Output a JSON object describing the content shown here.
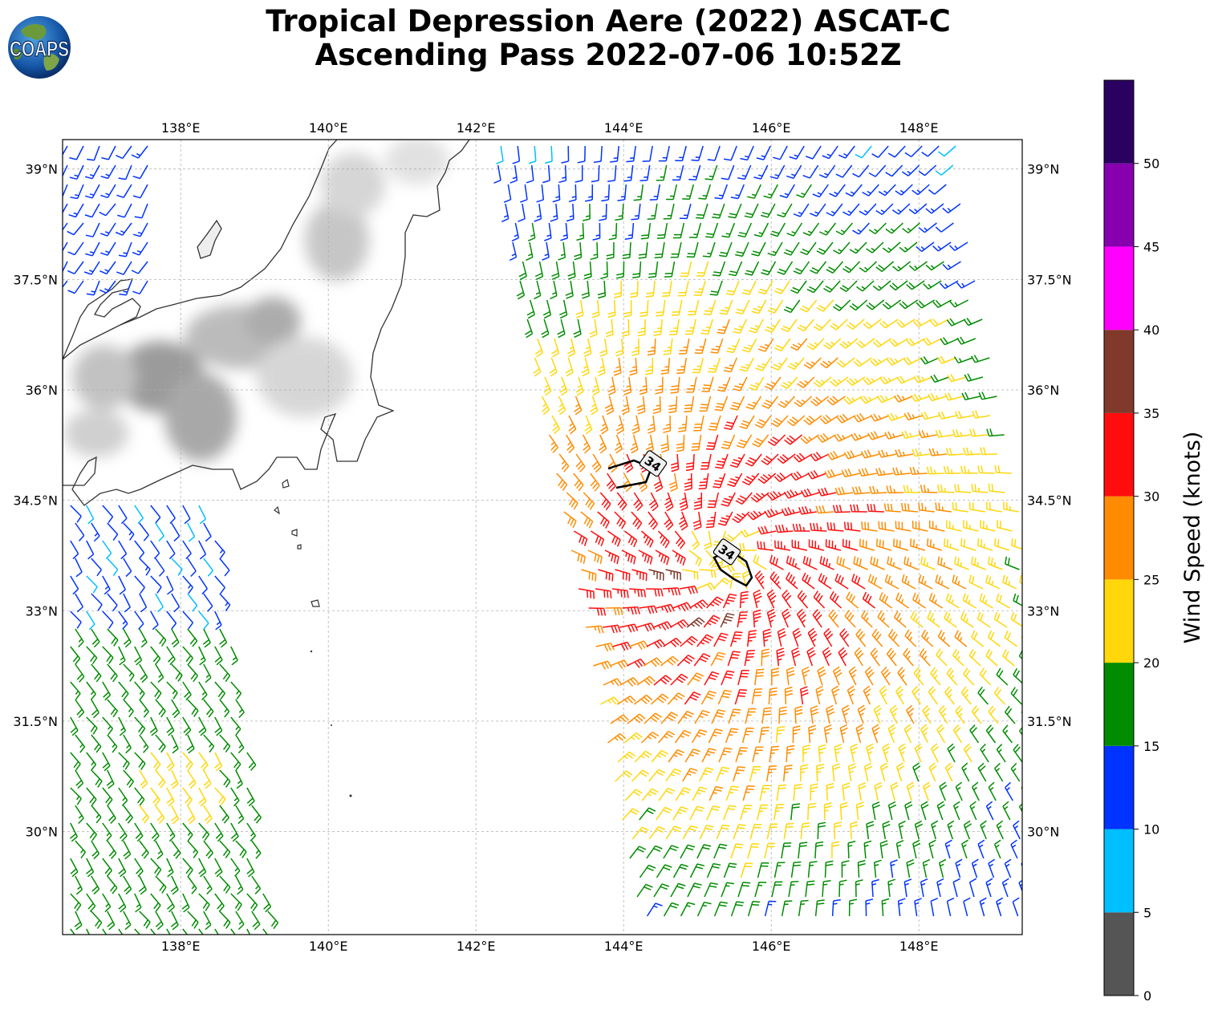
{
  "title": {
    "line1": "Tropical Depression Aere (2022) ASCAT-C",
    "line2": "Ascending Pass 2022-07-06 10:52Z"
  },
  "logo": {
    "text": "COAPS",
    "icon": "earth-globe-icon"
  },
  "map": {
    "lon_range": [
      136.4,
      149.4
    ],
    "lat_range": [
      28.6,
      39.4
    ],
    "lon_ticks": [
      "138°E",
      "140°E",
      "142°E",
      "144°E",
      "146°E",
      "148°E"
    ],
    "lon_tick_values": [
      138,
      140,
      142,
      144,
      146,
      148
    ],
    "lat_ticks": [
      "39°N",
      "37.5°N",
      "36°N",
      "34.5°N",
      "33°N",
      "31.5°N",
      "30°N"
    ],
    "lat_tick_values": [
      39,
      37.5,
      36,
      34.5,
      33,
      31.5,
      30
    ],
    "grid": true,
    "wind_radius_label": "34",
    "wind_radius_label_positions": [
      [
        144.4,
        35.0
      ],
      [
        145.4,
        33.8
      ]
    ]
  },
  "colorbar": {
    "label": "Wind Speed (knots)",
    "ticks": [
      "0",
      "5",
      "10",
      "15",
      "20",
      "25",
      "30",
      "35",
      "40",
      "45",
      "50"
    ],
    "bins": [
      {
        "min": 0,
        "max": 5,
        "color": "#555555"
      },
      {
        "min": 5,
        "max": 10,
        "color": "#00bfff"
      },
      {
        "min": 10,
        "max": 15,
        "color": "#0033ff"
      },
      {
        "min": 15,
        "max": 20,
        "color": "#008c00"
      },
      {
        "min": 20,
        "max": 25,
        "color": "#ffd70a"
      },
      {
        "min": 25,
        "max": 30,
        "color": "#ff8c00"
      },
      {
        "min": 30,
        "max": 35,
        "color": "#ff0d0d"
      },
      {
        "min": 35,
        "max": 40,
        "color": "#80392b"
      },
      {
        "min": 40,
        "max": 45,
        "color": "#ff00ff"
      },
      {
        "min": 45,
        "max": 50,
        "color": "#8600b0"
      },
      {
        "min": 50,
        "max": 55,
        "color": "#2a0060"
      }
    ]
  }
}
